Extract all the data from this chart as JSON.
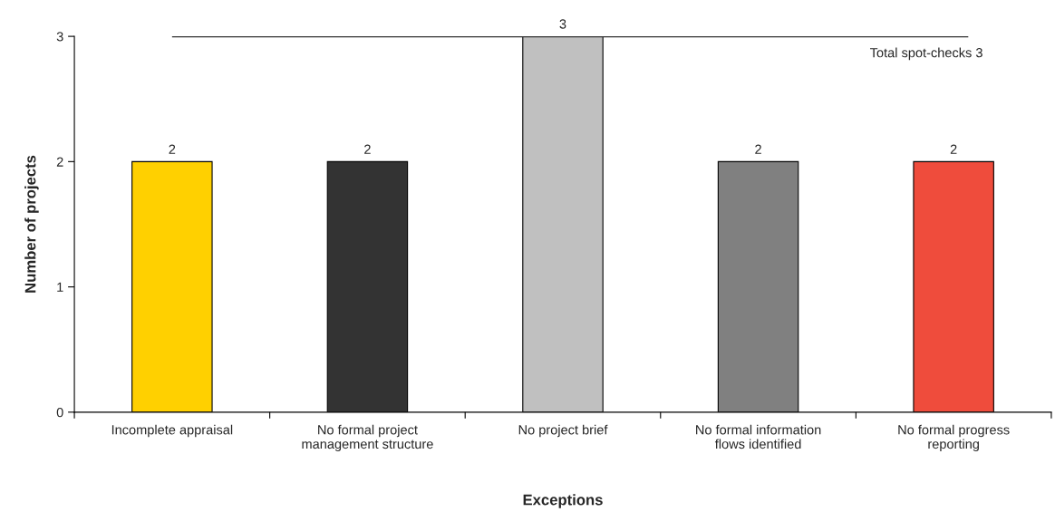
{
  "chart_data": {
    "type": "bar",
    "categories": [
      "Incomplete appraisal",
      "No formal project\nmanagement structure",
      "No project brief",
      "No formal information\nflows identified",
      "No formal progress\nreporting"
    ],
    "values": [
      2,
      2,
      3,
      2,
      2
    ],
    "colors": [
      "#ffd000",
      "#333333",
      "#c0c0c0",
      "#808080",
      "#ef4c3c"
    ],
    "xlabel": "Exceptions",
    "ylabel": "Number of projects",
    "ylim": [
      0,
      3
    ],
    "yticks": [
      0,
      1,
      2,
      3
    ],
    "ref_lines": [
      {
        "axis": "y",
        "value": 3,
        "label": "Total spot-checks 3",
        "color": "#333333",
        "line_style": "solid"
      }
    ],
    "data_labels": true,
    "grid": false,
    "legend": false
  }
}
